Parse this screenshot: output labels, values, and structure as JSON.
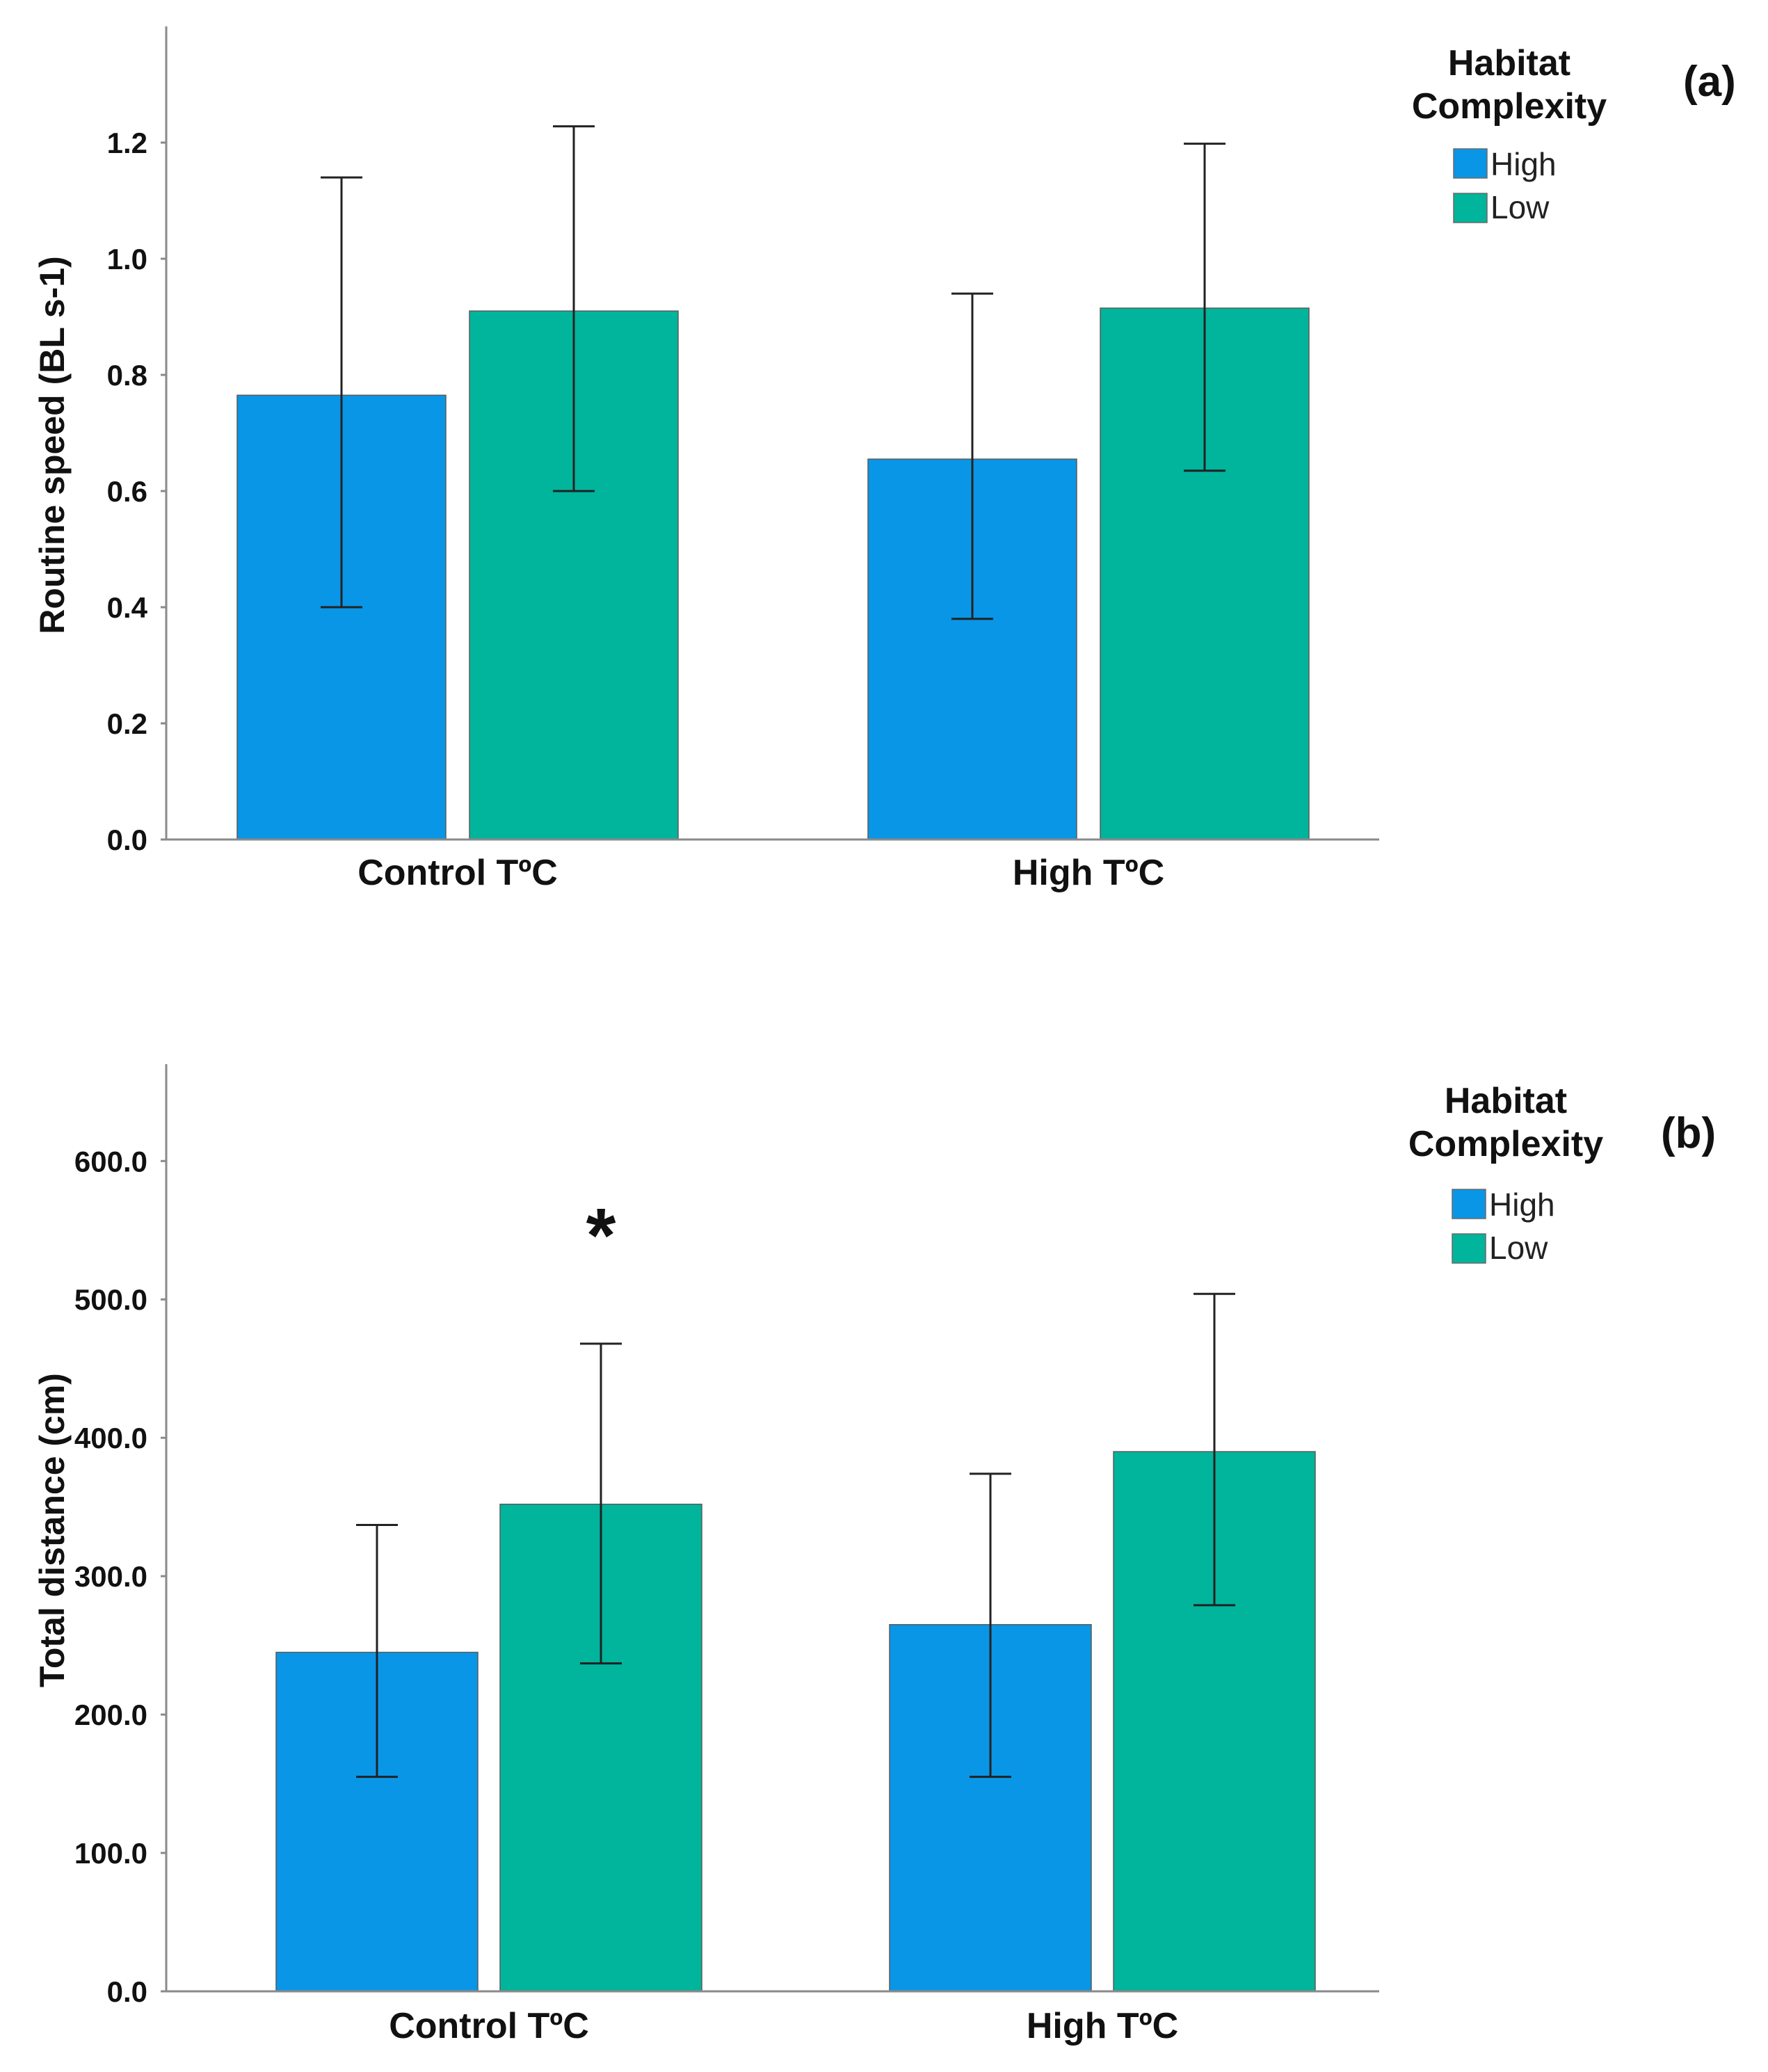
{
  "chart_data": [
    {
      "type": "bar",
      "panel_label": "(a)",
      "title": "",
      "xlabel": "",
      "ylabel": "Routine speed (BL s-1)",
      "ylim": [
        0,
        1.4
      ],
      "yticks": [
        0.0,
        0.2,
        0.4,
        0.6,
        0.8,
        1.0,
        1.2
      ],
      "ytick_labels": [
        "0.0",
        "0.2",
        "0.4",
        "0.6",
        "0.8",
        "1.0",
        "1.2"
      ],
      "categories": [
        "Control TºC",
        "High TºC"
      ],
      "legend": {
        "title_lines": [
          "Habitat",
          "Complexity"
        ],
        "position": "top-right"
      },
      "series": [
        {
          "name": "High",
          "color": "#0996e6",
          "values": [
            0.765,
            0.655
          ],
          "err_low": [
            0.4,
            0.38
          ],
          "err_high": [
            1.14,
            0.94
          ]
        },
        {
          "name": "Low",
          "color": "#01b49c",
          "values": [
            0.91,
            0.915
          ],
          "err_low": [
            0.6,
            0.635
          ],
          "err_high": [
            1.228,
            1.198
          ]
        }
      ],
      "annotations": []
    },
    {
      "type": "bar",
      "panel_label": "(b)",
      "title": "",
      "xlabel": "",
      "ylabel": "Total distance (cm)",
      "ylim": [
        0,
        670
      ],
      "yticks": [
        0,
        100,
        200,
        300,
        400,
        500,
        600
      ],
      "ytick_labels": [
        "0.0",
        "100.0",
        "200.0",
        "300.0",
        "400.0",
        "500.0",
        "600.0"
      ],
      "categories": [
        "Control TºC",
        "High TºC"
      ],
      "legend": {
        "title_lines": [
          "Habitat",
          "Complexity"
        ],
        "position": "top-right"
      },
      "series": [
        {
          "name": "High",
          "color": "#0996e6",
          "values": [
            245,
            265
          ],
          "err_low": [
            155,
            155
          ],
          "err_high": [
            337,
            374
          ]
        },
        {
          "name": "Low",
          "color": "#01b49c",
          "values": [
            352,
            390
          ],
          "err_low": [
            237,
            279
          ],
          "err_high": [
            468,
            504
          ]
        }
      ],
      "annotations": [
        {
          "text": "*",
          "category": "Control TºC",
          "series": "Low",
          "value": 565
        }
      ]
    }
  ]
}
